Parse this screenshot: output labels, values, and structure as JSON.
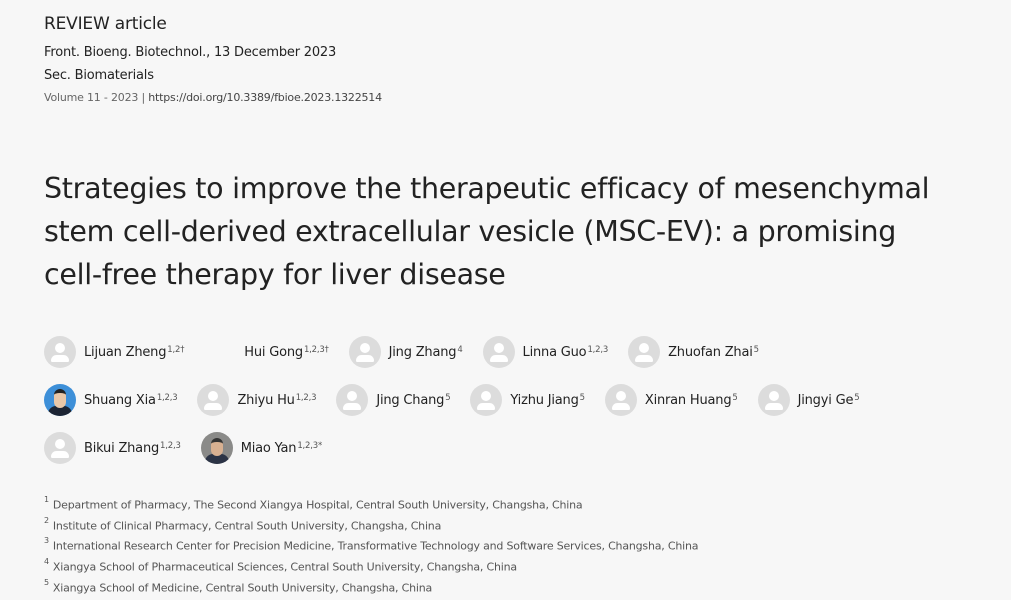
{
  "header": {
    "article_type": "REVIEW article",
    "journal_date": "Front. Bioeng. Biotechnol., 13 December 2023",
    "section": "Sec. Biomaterials",
    "volume": "Volume 11 - 2023",
    "separator": "|",
    "doi": "https://doi.org/10.3389/fbioe.2023.1322514"
  },
  "title": "Strategies to improve the therapeutic efficacy of mesenchymal stem cell-derived extracellular vesicle (MSC-EV): a promising cell-free therapy for liver disease",
  "authors": [
    [
      {
        "name": "Lijuan Zheng",
        "sup": "1,2†",
        "avatar": "placeholder"
      },
      {
        "name": "Hui Gong",
        "sup": "1,2,3†",
        "avatar": "none"
      },
      {
        "name": "Jing Zhang",
        "sup": "4",
        "avatar": "placeholder"
      },
      {
        "name": "Linna Guo",
        "sup": "1,2,3",
        "avatar": "placeholder"
      },
      {
        "name": "Zhuofan Zhai",
        "sup": "5",
        "avatar": "placeholder"
      }
    ],
    [
      {
        "name": "Shuang Xia",
        "sup": "1,2,3",
        "avatar": "photo1"
      },
      {
        "name": "Zhiyu Hu",
        "sup": "1,2,3",
        "avatar": "placeholder"
      },
      {
        "name": "Jing Chang",
        "sup": "5",
        "avatar": "placeholder"
      },
      {
        "name": "Yizhu Jiang",
        "sup": "5",
        "avatar": "placeholder"
      },
      {
        "name": "Xinran Huang",
        "sup": "5",
        "avatar": "placeholder"
      },
      {
        "name": "Jingyi Ge",
        "sup": "5",
        "avatar": "placeholder"
      }
    ],
    [
      {
        "name": "Bikui Zhang",
        "sup": "1,2,3",
        "avatar": "placeholder"
      },
      {
        "name": "Miao Yan",
        "sup": "1,2,3*",
        "avatar": "photo2"
      }
    ]
  ],
  "affiliations": [
    {
      "num": "1",
      "text": "Department of Pharmacy, The Second Xiangya Hospital, Central South University, Changsha, China"
    },
    {
      "num": "2",
      "text": "Institute of Clinical Pharmacy, Central South University, Changsha, China"
    },
    {
      "num": "3",
      "text": "International Research Center for Precision Medicine, Transformative Technology and Software Services, Changsha, China"
    },
    {
      "num": "4",
      "text": "Xiangya School of Pharmaceutical Sciences, Central South University, Changsha, China"
    },
    {
      "num": "5",
      "text": "Xiangya School of Medicine, Central South University, Changsha, China"
    }
  ]
}
